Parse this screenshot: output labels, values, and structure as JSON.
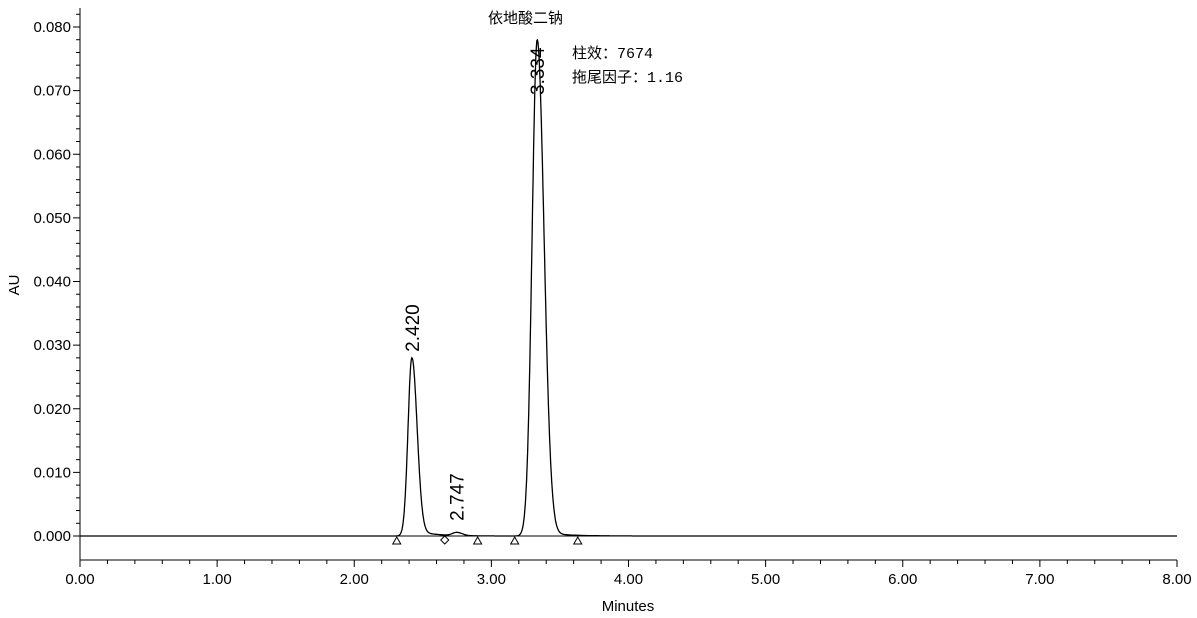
{
  "chart_data": {
    "type": "line",
    "title": "",
    "xlabel": "Minutes",
    "ylabel": "AU",
    "xlim": [
      0,
      8
    ],
    "ylim": [
      0,
      0.08
    ],
    "grid": false,
    "x_ticks": [
      "0.00",
      "1.00",
      "2.00",
      "3.00",
      "4.00",
      "5.00",
      "6.00",
      "7.00",
      "8.00"
    ],
    "y_ticks": [
      "0.000",
      "0.010",
      "0.020",
      "0.030",
      "0.040",
      "0.050",
      "0.060",
      "0.070",
      "0.080"
    ],
    "peaks": [
      {
        "label": "2.420",
        "rt": 2.42,
        "height": 0.028
      },
      {
        "label": "2.747",
        "rt": 2.747,
        "height": 0.0005
      },
      {
        "label": "3.334",
        "rt": 3.334,
        "height": 0.078
      }
    ],
    "integration_markers": [
      {
        "x": 2.31,
        "shape": "triangle"
      },
      {
        "x": 2.66,
        "shape": "diamond"
      },
      {
        "x": 2.9,
        "shape": "triangle"
      },
      {
        "x": 3.17,
        "shape": "triangle"
      },
      {
        "x": 3.63,
        "shape": "triangle"
      }
    ],
    "annotations": {
      "compound": "依地酸二钠",
      "plates": "柱效：7674",
      "tailing": "拖尾因子：1.16"
    },
    "line_color": "#000000"
  }
}
